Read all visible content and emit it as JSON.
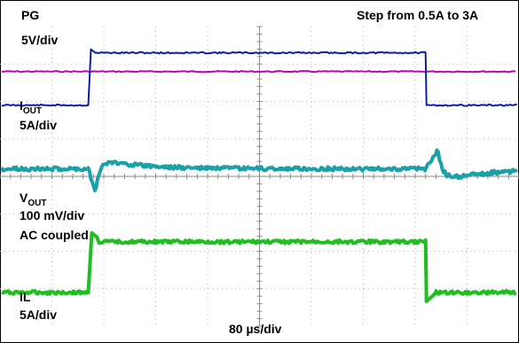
{
  "chart_data": {
    "type": "line",
    "title": "Step from 0.5A to 3A",
    "x_scale_label": "80 µs/div",
    "grid": true,
    "divisions": {
      "x": 10,
      "y": 8
    },
    "channels": [
      {
        "key": "pg",
        "name": "PG",
        "name_sub": "",
        "scale": "5V/div",
        "extra": "",
        "color": "#c000c0"
      },
      {
        "key": "iout",
        "name": "I",
        "name_sub": "OUT",
        "scale": "5A/div",
        "extra": "",
        "color": "#0b1fa8"
      },
      {
        "key": "vout",
        "name": "V",
        "name_sub": "OUT",
        "scale": "100 mV/div",
        "extra": "AC coupled",
        "color": "#1aa0a8"
      },
      {
        "key": "il",
        "name": "IL",
        "name_sub": "",
        "scale": "5A/div",
        "extra": "",
        "color": "#1fbf1f"
      }
    ],
    "events": {
      "step_up_div": 1.7,
      "step_down_div": 8.2
    },
    "levels_div": {
      "pg": {
        "level": 6.8
      },
      "iout": {
        "low": 5.9,
        "high": 7.3
      },
      "vout": {
        "baseline": 4.2,
        "dip": -0.6,
        "overshoot": 0.3,
        "undershoot": -0.35
      },
      "il": {
        "low": 0.9,
        "high": 2.3
      }
    }
  }
}
